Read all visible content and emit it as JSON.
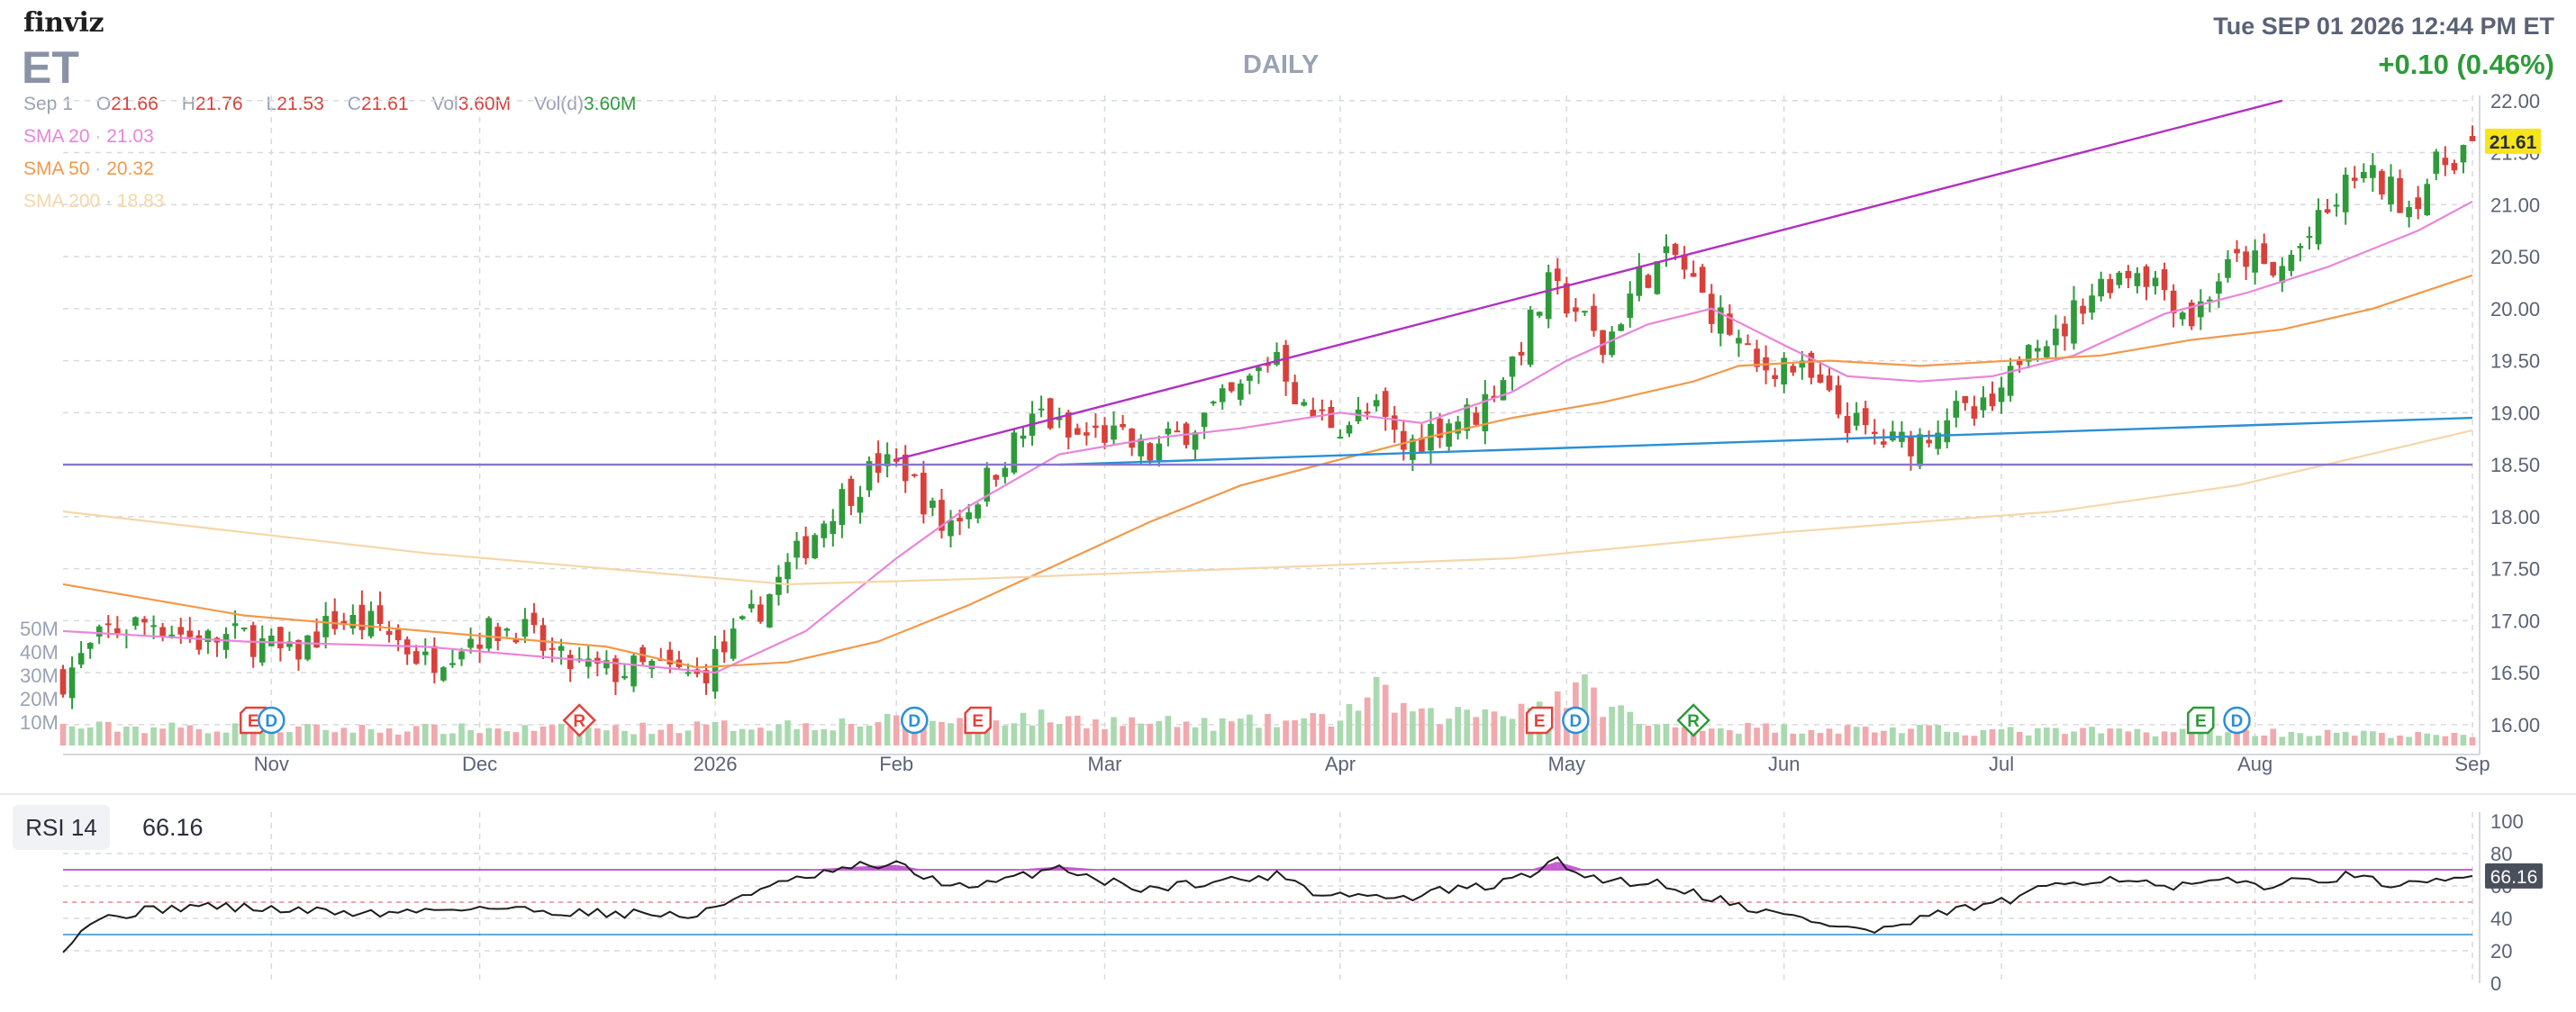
{
  "header": {
    "logo": "finviz",
    "ticker": "ET",
    "timeframe": "DAILY",
    "datetime": "Tue SEP 01 2026 12:44 PM ET",
    "change": "+0.10 (0.46%)"
  },
  "ohlc": {
    "date": "Sep 1",
    "open_label": "O",
    "open": "21.66",
    "high_label": "H",
    "high": "21.76",
    "low_label": "L",
    "low": "21.53",
    "close_label": "C",
    "close": "21.61",
    "vol_label": "Vol",
    "vol": "3.60M",
    "vold_label": "Vol(d)",
    "vold": "3.60M"
  },
  "sma": [
    {
      "label": "SMA 20",
      "value": "21.03",
      "color": "#e985d9"
    },
    {
      "label": "SMA 50",
      "value": "20.32",
      "color": "#f2994a"
    },
    {
      "label": "SMA 200",
      "value": "18.83",
      "color": "#f6d6a8"
    }
  ],
  "colors": {
    "up": "#2e9a3a",
    "down": "#d9403a",
    "vol_up": "#a9d9ae",
    "vol_down": "#f1a9ad",
    "channel": "#b22fc2",
    "support": "#2a8fd6",
    "horizontal": "#8878c8"
  },
  "chart_data": [
    {
      "type": "candlestick",
      "title": "",
      "x_labels": [
        "Nov",
        "Dec",
        "2026",
        "Feb",
        "Mar",
        "Apr",
        "May",
        "Jun",
        "Jul",
        "Aug",
        "Sep"
      ],
      "x_label_days": [
        23,
        46,
        72,
        92,
        115,
        141,
        166,
        190,
        214,
        242,
        266
      ],
      "day_range": [
        0,
        266
      ],
      "y_ticks": [
        "16.00",
        "16.50",
        "17.00",
        "17.50",
        "18.00",
        "18.50",
        "19.00",
        "19.50",
        "20.00",
        "20.50",
        "21.00",
        "21.50",
        "22.00"
      ],
      "ylim": [
        15.8,
        22.05
      ],
      "volume_ticks": [
        "10M",
        "20M",
        "30M",
        "40M",
        "50M"
      ],
      "volume_max": 50,
      "last_price_label": "21.61",
      "close_anchors": [
        [
          0,
          16.45
        ],
        [
          5,
          16.9
        ],
        [
          10,
          17.0
        ],
        [
          15,
          16.8
        ],
        [
          20,
          16.85
        ],
        [
          25,
          16.65
        ],
        [
          30,
          17.0
        ],
        [
          35,
          16.95
        ],
        [
          40,
          16.6
        ],
        [
          45,
          16.85
        ],
        [
          50,
          16.95
        ],
        [
          55,
          16.6
        ],
        [
          60,
          16.5
        ],
        [
          65,
          16.55
        ],
        [
          70,
          16.45
        ],
        [
          75,
          16.9
        ],
        [
          80,
          17.5
        ],
        [
          85,
          18.1
        ],
        [
          90,
          18.5
        ],
        [
          93,
          18.45
        ],
        [
          97,
          17.9
        ],
        [
          100,
          18.1
        ],
        [
          104,
          18.6
        ],
        [
          108,
          19.0
        ],
        [
          111,
          18.75
        ],
        [
          115,
          18.8
        ],
        [
          120,
          18.6
        ],
        [
          125,
          18.9
        ],
        [
          130,
          19.2
        ],
        [
          134,
          19.6
        ],
        [
          137,
          19.0
        ],
        [
          141,
          18.9
        ],
        [
          145,
          19.0
        ],
        [
          148,
          18.65
        ],
        [
          152,
          18.9
        ],
        [
          156,
          19.0
        ],
        [
          160,
          19.5
        ],
        [
          164,
          20.2
        ],
        [
          167,
          20.0
        ],
        [
          170,
          19.6
        ],
        [
          174,
          20.3
        ],
        [
          178,
          20.5
        ],
        [
          181,
          20.1
        ],
        [
          184,
          19.8
        ],
        [
          187,
          19.4
        ],
        [
          190,
          19.5
        ],
        [
          193,
          19.3
        ],
        [
          196,
          19.0
        ],
        [
          199,
          18.8
        ],
        [
          202,
          18.7
        ],
        [
          205,
          18.75
        ],
        [
          208,
          19.0
        ],
        [
          211,
          18.95
        ],
        [
          214,
          19.1
        ],
        [
          217,
          19.8
        ],
        [
          220,
          19.7
        ],
        [
          223,
          20.1
        ],
        [
          226,
          20.3
        ],
        [
          229,
          20.4
        ],
        [
          232,
          20.2
        ],
        [
          235,
          19.9
        ],
        [
          238,
          20.3
        ],
        [
          241,
          20.5
        ],
        [
          244,
          20.3
        ],
        [
          247,
          20.6
        ],
        [
          250,
          20.9
        ],
        [
          253,
          21.3
        ],
        [
          256,
          21.2
        ],
        [
          259,
          21.0
        ],
        [
          262,
          21.35
        ],
        [
          266,
          21.61
        ]
      ],
      "volume_anchors": [
        [
          0,
          8
        ],
        [
          30,
          7
        ],
        [
          60,
          7
        ],
        [
          80,
          9
        ],
        [
          90,
          10
        ],
        [
          105,
          12
        ],
        [
          125,
          9
        ],
        [
          140,
          11
        ],
        [
          145,
          22
        ],
        [
          150,
          12
        ],
        [
          160,
          16
        ],
        [
          168,
          23
        ],
        [
          175,
          8
        ],
        [
          200,
          7
        ],
        [
          215,
          6
        ],
        [
          240,
          6
        ],
        [
          266,
          4
        ]
      ],
      "indicators": [
        {
          "name": "SMA 20",
          "color": "#e985d9",
          "points": [
            [
              0,
              16.9
            ],
            [
              20,
              16.8
            ],
            [
              40,
              16.75
            ],
            [
              60,
              16.6
            ],
            [
              72,
              16.5
            ],
            [
              82,
              16.9
            ],
            [
              92,
              17.6
            ],
            [
              100,
              18.1
            ],
            [
              110,
              18.6
            ],
            [
              120,
              18.75
            ],
            [
              130,
              18.85
            ],
            [
              141,
              19.0
            ],
            [
              150,
              18.9
            ],
            [
              160,
              19.2
            ],
            [
              166,
              19.5
            ],
            [
              175,
              19.85
            ],
            [
              182,
              20.0
            ],
            [
              190,
              19.65
            ],
            [
              197,
              19.35
            ],
            [
              205,
              19.3
            ],
            [
              213,
              19.35
            ],
            [
              222,
              19.55
            ],
            [
              232,
              19.95
            ],
            [
              241,
              20.15
            ],
            [
              250,
              20.4
            ],
            [
              260,
              20.75
            ],
            [
              266,
              21.03
            ]
          ]
        },
        {
          "name": "SMA 50",
          "color": "#f2994a",
          "points": [
            [
              0,
              17.35
            ],
            [
              20,
              17.05
            ],
            [
              40,
              16.9
            ],
            [
              60,
              16.75
            ],
            [
              70,
              16.55
            ],
            [
              80,
              16.6
            ],
            [
              90,
              16.8
            ],
            [
              100,
              17.15
            ],
            [
              110,
              17.55
            ],
            [
              120,
              17.95
            ],
            [
              130,
              18.3
            ],
            [
              141,
              18.55
            ],
            [
              150,
              18.75
            ],
            [
              160,
              18.95
            ],
            [
              170,
              19.1
            ],
            [
              180,
              19.3
            ],
            [
              185,
              19.45
            ],
            [
              195,
              19.5
            ],
            [
              205,
              19.45
            ],
            [
              215,
              19.5
            ],
            [
              225,
              19.55
            ],
            [
              235,
              19.7
            ],
            [
              245,
              19.8
            ],
            [
              255,
              20.0
            ],
            [
              266,
              20.32
            ]
          ]
        },
        {
          "name": "SMA 200",
          "color": "#f6d6a8",
          "points": [
            [
              0,
              18.05
            ],
            [
              20,
              17.85
            ],
            [
              40,
              17.65
            ],
            [
              60,
              17.5
            ],
            [
              80,
              17.35
            ],
            [
              100,
              17.4
            ],
            [
              130,
              17.5
            ],
            [
              160,
              17.6
            ],
            [
              190,
              17.85
            ],
            [
              220,
              18.05
            ],
            [
              240,
              18.3
            ],
            [
              266,
              18.83
            ]
          ]
        }
      ],
      "trendlines": [
        {
          "name": "channel-upper",
          "color": "#b22fc2",
          "from": [
            92,
            18.55
          ],
          "to": [
            245,
            22.0
          ]
        },
        {
          "name": "support",
          "color": "#2a8fd6",
          "from": [
            110,
            18.5
          ],
          "to": [
            266,
            18.95
          ]
        },
        {
          "name": "horizontal",
          "color": "#8878c8",
          "from": [
            0,
            18.5
          ],
          "to": [
            266,
            18.5
          ]
        }
      ],
      "events": [
        {
          "day": 21,
          "label": "E",
          "kind": "earnings"
        },
        {
          "day": 23,
          "label": "D",
          "kind": "dividend"
        },
        {
          "day": 57,
          "label": "R",
          "kind": "revision"
        },
        {
          "day": 94,
          "label": "D",
          "kind": "dividend"
        },
        {
          "day": 101,
          "label": "E",
          "kind": "earnings"
        },
        {
          "day": 163,
          "label": "E",
          "kind": "earnings"
        },
        {
          "day": 167,
          "label": "D",
          "kind": "dividend"
        },
        {
          "day": 180,
          "label": "R",
          "kind": "revision-up"
        },
        {
          "day": 236,
          "label": "E",
          "kind": "earnings-up"
        },
        {
          "day": 240,
          "label": "D",
          "kind": "dividend"
        }
      ]
    },
    {
      "type": "line",
      "title": "RSI 14",
      "value": "66.16",
      "y_ticks": [
        "0",
        "20",
        "40",
        "60",
        "80",
        "100"
      ],
      "ylim": [
        0,
        100
      ],
      "levels": [
        70,
        50,
        30
      ],
      "points": [
        [
          0,
          22
        ],
        [
          3,
          38
        ],
        [
          8,
          44
        ],
        [
          15,
          48
        ],
        [
          25,
          45
        ],
        [
          35,
          43
        ],
        [
          45,
          47
        ],
        [
          55,
          44
        ],
        [
          65,
          43
        ],
        [
          70,
          41
        ],
        [
          75,
          55
        ],
        [
          82,
          65
        ],
        [
          88,
          72
        ],
        [
          92,
          73
        ],
        [
          95,
          66
        ],
        [
          100,
          58
        ],
        [
          105,
          65
        ],
        [
          110,
          72
        ],
        [
          115,
          63
        ],
        [
          120,
          58
        ],
        [
          125,
          62
        ],
        [
          130,
          64
        ],
        [
          135,
          67
        ],
        [
          138,
          56
        ],
        [
          142,
          55
        ],
        [
          148,
          52
        ],
        [
          152,
          57
        ],
        [
          158,
          60
        ],
        [
          162,
          68
        ],
        [
          165,
          75
        ],
        [
          168,
          66
        ],
        [
          172,
          63
        ],
        [
          176,
          62
        ],
        [
          180,
          56
        ],
        [
          184,
          50
        ],
        [
          188,
          44
        ],
        [
          192,
          40
        ],
        [
          196,
          35
        ],
        [
          200,
          32
        ],
        [
          204,
          37
        ],
        [
          208,
          44
        ],
        [
          212,
          48
        ],
        [
          216,
          52
        ],
        [
          220,
          62
        ],
        [
          224,
          64
        ],
        [
          228,
          65
        ],
        [
          232,
          58
        ],
        [
          236,
          61
        ],
        [
          240,
          63
        ],
        [
          244,
          60
        ],
        [
          248,
          64
        ],
        [
          252,
          66
        ],
        [
          256,
          62
        ],
        [
          260,
          60
        ],
        [
          266,
          66
        ]
      ]
    }
  ]
}
